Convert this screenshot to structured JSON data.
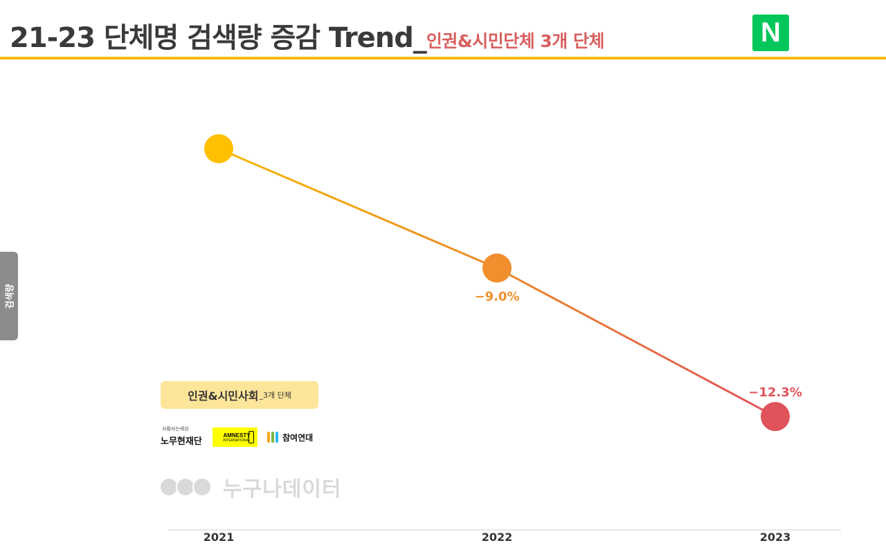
{
  "header": {
    "title": "21-23 단체명 검색량 증감 Trend_",
    "subtitle": "인권&시민단체 3개 단체",
    "logo_letter": "N",
    "logo_color": "#03c75a",
    "accent_line_color": "#f5b800"
  },
  "chart_data": {
    "type": "line",
    "title": "21-23 단체명 검색량 증감 Trend_인권&시민단체 3개 단체",
    "xlabel": "",
    "ylabel": "검색량",
    "categories": [
      "2021",
      "2022",
      "2023"
    ],
    "series": [
      {
        "values": [
          100,
          91.0,
          79.8
        ],
        "point_colors": [
          "#ffc000",
          "#f18f2e",
          "#e0535a"
        ],
        "labels": [
          "",
          "−9.0%",
          "−12.3%"
        ],
        "label_positions": [
          "",
          "below",
          "above"
        ],
        "line_gradient": [
          "#f5b800",
          "#e0535a"
        ]
      }
    ],
    "ylim": [
      70,
      106
    ],
    "grid": false,
    "legend": {
      "position": "bottom-left",
      "label_main": "인권&시민사회",
      "label_small": "_3개 단체"
    }
  },
  "organizations": {
    "roh": {
      "name": "노무현재단",
      "script": "사람사는세상"
    },
    "amnesty": {
      "line1": "AMNESTY",
      "line2": "INTERNATIONAL",
      "color": "#ffff00"
    },
    "chamyeo": {
      "name": "참여연대"
    }
  },
  "watermark": {
    "text": "누구나데이터"
  }
}
